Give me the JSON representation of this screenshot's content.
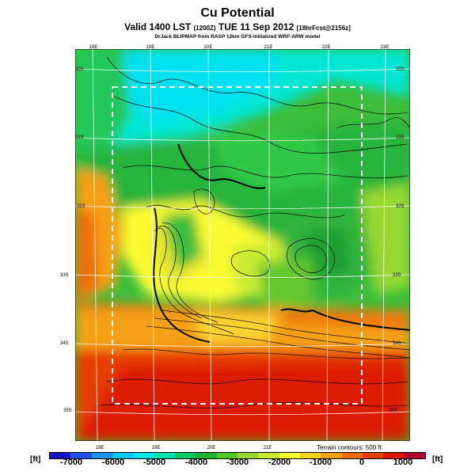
{
  "header": {
    "title": "Cu Potential",
    "subtitle_main": "Valid 1400 LST",
    "subtitle_zulu": "(1200Z)",
    "subtitle_date": "TUE 11 Sep 2012",
    "subtitle_fcst": "[18hrFcst@2156z]",
    "credit": "DrJack BLIPMAP from RASP 12km GFS-initialized WRF-ARW model"
  },
  "map": {
    "lon_labels_top": [
      "18E",
      "19E",
      "20E",
      "21E",
      "22E",
      "23E"
    ],
    "lon_labels_bottom": [
      "18E",
      "19E",
      "20E",
      "21E"
    ],
    "lat_labels_left": [
      "30S",
      "31S",
      "32S",
      "33S",
      "34S",
      "35S"
    ],
    "lat_labels_right": [
      "30S",
      "31S",
      "32S",
      "33S",
      "34S",
      "35S"
    ],
    "terrain_note": "Terrain contours: 500 ft"
  },
  "colorbar": {
    "unit_left": "[ft]",
    "unit_right": "[ft]",
    "ticks": [
      "-7000",
      "-6000",
      "-5000",
      "-4000",
      "-3000",
      "-2000",
      "-1000",
      "0",
      "1000"
    ],
    "colors": [
      "#1414c8",
      "#2050e8",
      "#1e90ff",
      "#00c8ff",
      "#00e6e6",
      "#00e0b4",
      "#00c864",
      "#1eb432",
      "#50c828",
      "#96d732",
      "#c8eb32",
      "#fafa32",
      "#f5d21e",
      "#f5a014",
      "#f06e0a",
      "#e63c00",
      "#dc1400",
      "#b40032"
    ]
  }
}
